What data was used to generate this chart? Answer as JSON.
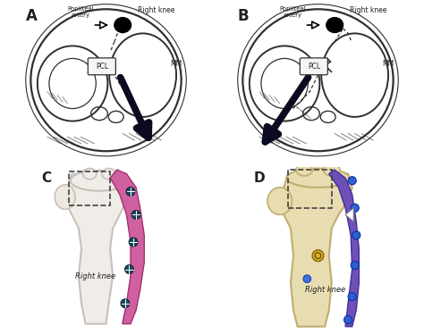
{
  "colors": {
    "background": "#ffffff",
    "panel_C_bg": "#d0e8f5",
    "outline": "#303030",
    "text_color": "#202020",
    "arrow_dark": "#0a0a20",
    "bone_white": "#f0ede8",
    "bone_tan": "#e8ddb0",
    "bone_tan_edge": "#c0ad70",
    "plate_pink": "#d060a0",
    "plate_pink_edge": "#a03070",
    "plate_purple": "#7050b8",
    "plate_purple_edge": "#4030a0",
    "screw_teal": "#205060",
    "screw_yellow": "#d4b020",
    "screw_blue": "#3060d0",
    "pcl_fill": "#f5f5f5"
  },
  "labels": {
    "popliteal_artery": "Popliteal\nartery",
    "right_knee": "Right knee",
    "MM": "MM",
    "PCL": "PCL"
  }
}
